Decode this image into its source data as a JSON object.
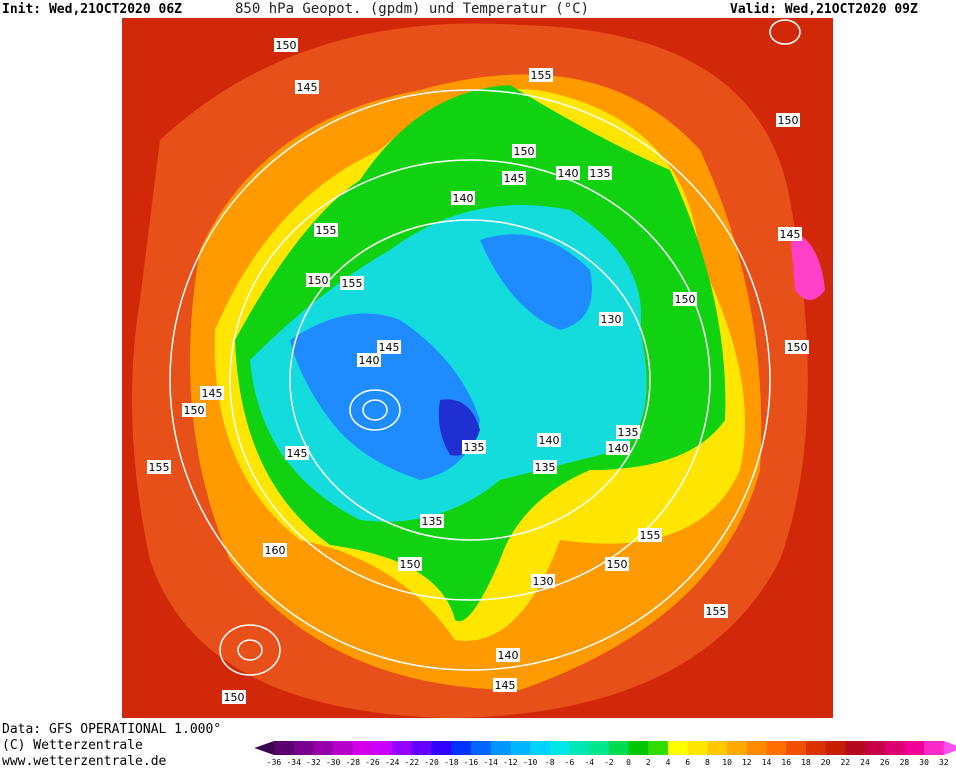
{
  "header": {
    "init": "Init: Wed,21OCT2020 06Z",
    "title": "850 hPa Geopot. (gpdm) und Temperatur (°C)",
    "valid": "Valid: Wed,21OCT2020 09Z"
  },
  "footer": [
    "Data: GFS OPERATIONAL 1.000°",
    "(C) Wetterzentrale",
    "www.wetterzentrale.de"
  ],
  "colorbar": {
    "ticks": [
      -36,
      -34,
      -32,
      -30,
      -28,
      -26,
      -24,
      -22,
      -20,
      -18,
      -16,
      -14,
      -12,
      -10,
      -8,
      -6,
      -4,
      -2,
      0,
      2,
      4,
      6,
      8,
      10,
      12,
      14,
      16,
      18,
      20,
      22,
      24,
      26,
      28,
      30,
      32
    ],
    "colors": [
      "#3c0050",
      "#5a006e",
      "#78008c",
      "#9600aa",
      "#b400c8",
      "#d200e6",
      "#c800ff",
      "#9600ff",
      "#6400ff",
      "#3200ff",
      "#0032ff",
      "#0064ff",
      "#0096ff",
      "#00b4ff",
      "#00d2ff",
      "#00e6e6",
      "#00e6b4",
      "#00e68c",
      "#00dc50",
      "#00c800",
      "#32dc00",
      "#ffff00",
      "#ffe600",
      "#ffc800",
      "#ffaa00",
      "#ff8c00",
      "#ff6e00",
      "#f05000",
      "#dc3200",
      "#c81e00",
      "#b40a1e",
      "#c80046",
      "#dc006e",
      "#f00096",
      "#ff28c8",
      "#ff50f0"
    ]
  },
  "contour_labels": [
    150,
    145,
    155,
    150,
    150,
    145,
    140,
    135,
    140,
    155,
    145,
    150,
    155,
    150,
    130,
    145,
    140,
    150,
    145,
    150,
    135,
    135,
    140,
    140,
    145,
    135,
    155,
    135,
    155,
    160,
    150,
    150,
    130,
    155,
    140,
    145,
    150
  ]
}
